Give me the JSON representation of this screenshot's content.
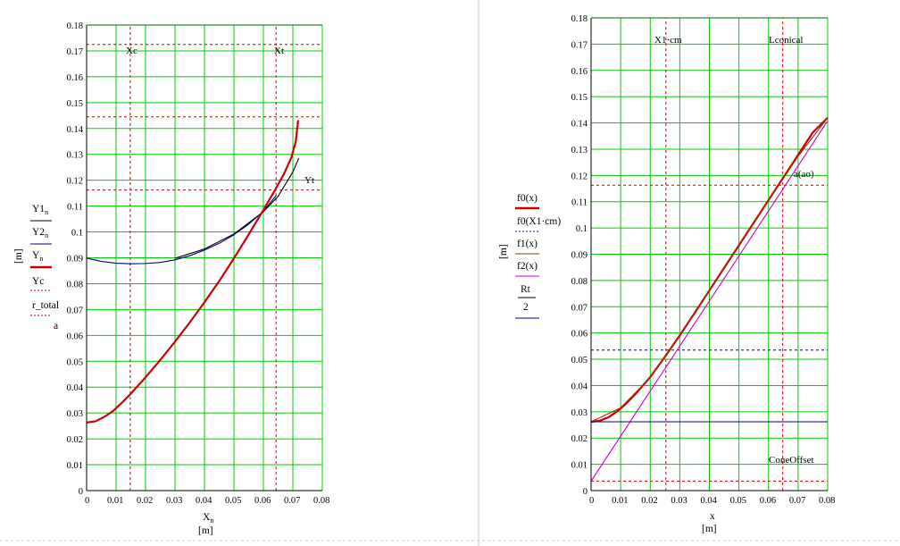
{
  "colors": {
    "grid": "#00cc00",
    "frame": "#000000",
    "red": "#cc0000",
    "blue": "#000080",
    "brown": "#993300",
    "magenta": "#cc00cc",
    "divider": "#cccccc"
  },
  "charts": [
    {
      "ylabel_unit": "[m]",
      "xlabel_main": "X",
      "xlabel_sub": "n",
      "xlabel_unit": "[m]",
      "xticks": [
        "0",
        "0.01",
        "0.02",
        "0.03",
        "0.04",
        "0.05",
        "0.06",
        "0.07",
        "0.08"
      ],
      "yticks": [
        "0",
        "0.01",
        "0.02",
        "0.03",
        "0.04",
        "0.05",
        "0.06",
        "0.07",
        "0.08",
        "0.09",
        "0.1",
        "0.11",
        "0.12",
        "0.13",
        "0.14",
        "0.15",
        "0.16",
        "0.17",
        "0.18"
      ],
      "legend": [
        {
          "main": "Y1",
          "sub": "n"
        },
        {
          "main": "Y2",
          "sub": "n"
        },
        {
          "main": "Y",
          "sub": "n"
        },
        {
          "main": "Yc",
          "sub": ""
        },
        {
          "main": "r_total",
          "sub": ""
        }
      ],
      "legend_extra": "a",
      "annotations": [
        "Xc",
        "Xt",
        "Yt"
      ]
    },
    {
      "ylabel_unit": "[m]",
      "xlabel_main": "x",
      "xlabel_sub": "",
      "xlabel_unit": "[m]",
      "xticks": [
        "0",
        "0.01",
        "0.02",
        "0.03",
        "0.04",
        "0.05",
        "0.06",
        "0.07",
        "0.08"
      ],
      "yticks": [
        "0",
        "0.01",
        "0.02",
        "0.03",
        "0.04",
        "0.05",
        "0.06",
        "0.07",
        "0.08",
        "0.09",
        "0.1",
        "0.11",
        "0.12",
        "0.13",
        "0.14",
        "0.15",
        "0.16",
        "0.17",
        "0.18"
      ],
      "legend": [
        "f0(x)",
        "f0(X1·cm)",
        "f1(x)",
        "f2(x)",
        "Rt",
        "2"
      ],
      "annotations": [
        "X1·cm",
        "Lconical",
        "a(ao)",
        "ConeOffset"
      ]
    }
  ],
  "chart_data": [
    {
      "type": "line",
      "xlim": [
        0,
        0.08
      ],
      "ylim": [
        0,
        0.18
      ],
      "grid": true,
      "vlines": [
        0.0148,
        0.0643
      ],
      "hlines": [
        0.1725,
        0.1445,
        0.1162
      ],
      "series": [
        {
          "name": "Y1",
          "color": "#000000",
          "x": [
            0.03,
            0.04,
            0.05,
            0.06,
            0.065,
            0.07,
            0.072
          ],
          "y": [
            0.0898,
            0.0934,
            0.0992,
            0.1078,
            0.1138,
            0.1232,
            0.1285
          ]
        },
        {
          "name": "Y2",
          "color": "#000080",
          "x": [
            0,
            0.005,
            0.01,
            0.015,
            0.02,
            0.025,
            0.03,
            0.035,
            0.04,
            0.045,
            0.05,
            0.055,
            0.06,
            0.0643
          ],
          "y": [
            0.0899,
            0.0886,
            0.0879,
            0.0877,
            0.0878,
            0.0882,
            0.0892,
            0.0908,
            0.093,
            0.0956,
            0.0989,
            0.103,
            0.108,
            0.114
          ]
        },
        {
          "name": "Y",
          "color": "#cc0000",
          "x": [
            0,
            0.003,
            0.006,
            0.009,
            0.012,
            0.015,
            0.02,
            0.025,
            0.03,
            0.035,
            0.04,
            0.045,
            0.05,
            0.055,
            0.06,
            0.064,
            0.067,
            0.0695,
            0.071,
            0.0718
          ],
          "y": [
            0.0263,
            0.0268,
            0.0285,
            0.0308,
            0.034,
            0.0375,
            0.0438,
            0.0505,
            0.0576,
            0.065,
            0.0728,
            0.081,
            0.0898,
            0.099,
            0.1085,
            0.1163,
            0.1225,
            0.1288,
            0.135,
            0.1432
          ]
        }
      ]
    },
    {
      "type": "line",
      "xlim": [
        0,
        0.08
      ],
      "ylim": [
        0,
        0.18
      ],
      "grid": true,
      "vlines": [
        0.0253,
        0.0648
      ],
      "hlines": [
        0.1163,
        0.0535,
        0.0036
      ],
      "series": [
        {
          "name": "f0(x)",
          "color": "#cc0000",
          "x": [
            0,
            0.003,
            0.006,
            0.009,
            0.012,
            0.015,
            0.02,
            0.025,
            0.03,
            0.035,
            0.04,
            0.045,
            0.05,
            0.055,
            0.06,
            0.065,
            0.07,
            0.075,
            0.08
          ],
          "y": [
            0.0262,
            0.0266,
            0.028,
            0.0303,
            0.0333,
            0.0368,
            0.0432,
            0.051,
            0.0591,
            0.0676,
            0.0762,
            0.0848,
            0.0934,
            0.102,
            0.1106,
            0.1192,
            0.1278,
            0.1364,
            0.142
          ]
        },
        {
          "name": "f1(x)",
          "color": "#993300",
          "x": [
            0,
            0.01,
            0.02,
            0.03,
            0.04,
            0.05,
            0.06,
            0.07,
            0.08
          ],
          "y": [
            0.0262,
            0.0315,
            0.043,
            0.059,
            0.076,
            0.0933,
            0.1104,
            0.1273,
            0.142
          ]
        },
        {
          "name": "f2(x)",
          "color": "#cc00cc",
          "x": [
            0,
            0.08
          ],
          "y": [
            0.0036,
            0.1408
          ]
        },
        {
          "name": "Rt/2",
          "color": "#000080",
          "x": [
            0,
            0.08
          ],
          "y": [
            0.0262,
            0.0262
          ]
        }
      ]
    }
  ]
}
